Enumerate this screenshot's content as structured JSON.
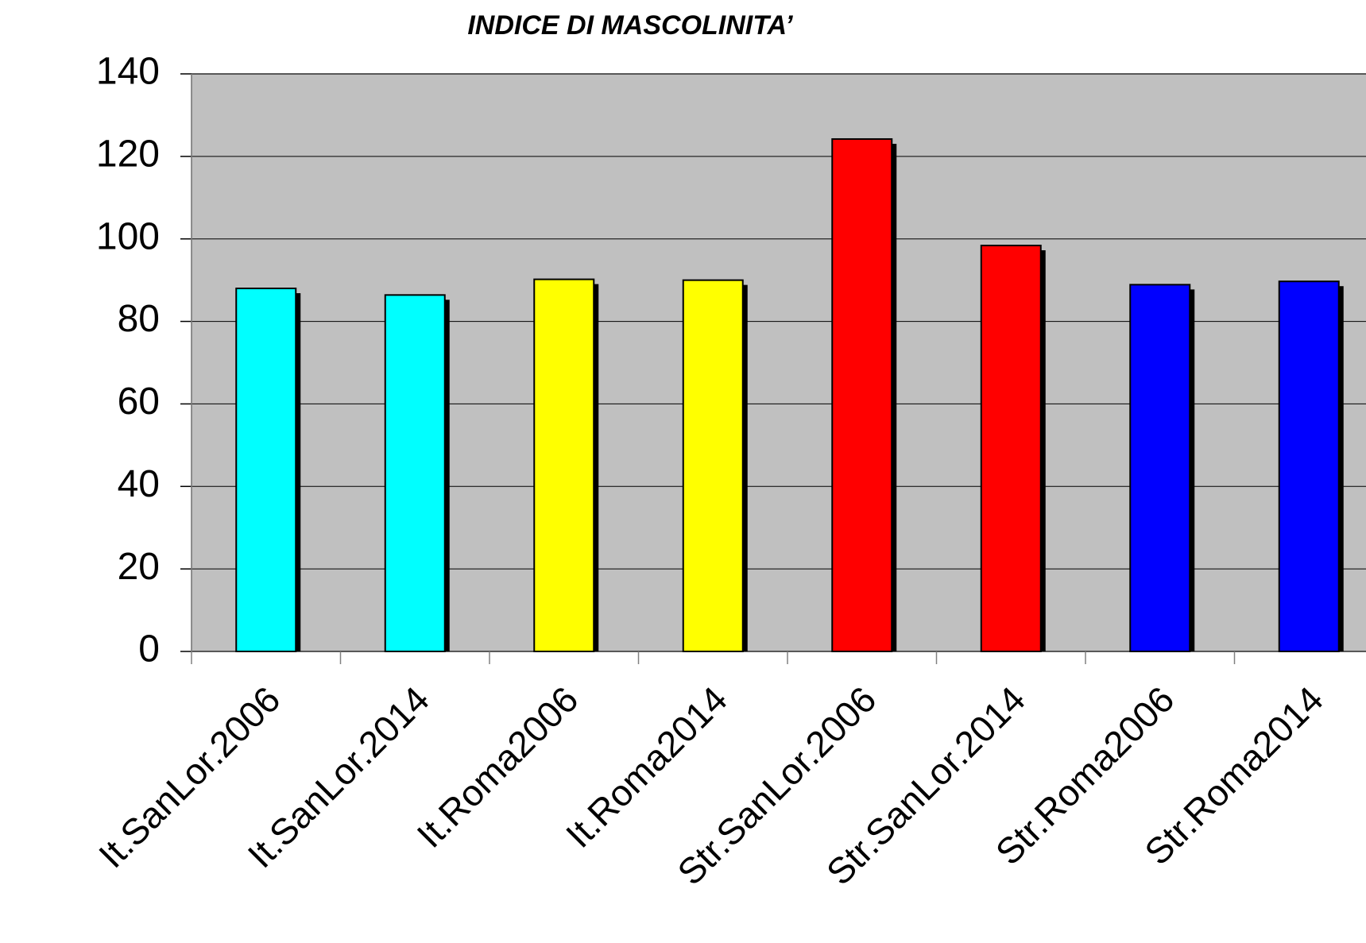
{
  "chart_data": {
    "type": "bar",
    "title": "INDICE  DI  MASCOLINITA’",
    "categories": [
      "It.SanLor.2006",
      "It.SanLor.2014",
      "It.Roma2006",
      "It.Roma2014",
      "Str.SanLor.2006",
      "Str.SanLor.2014",
      "Str.Roma2006",
      "Str.Roma2014"
    ],
    "values": [
      88.0,
      86.4,
      90.2,
      90.0,
      124.2,
      98.4,
      88.9,
      89.7
    ],
    "colors": [
      "#00ffff",
      "#00ffff",
      "#ffff00",
      "#ffff00",
      "#ff0000",
      "#ff0000",
      "#0000ff",
      "#0000ff"
    ],
    "ylim": [
      0,
      140
    ],
    "yticks": [
      0,
      20,
      40,
      60,
      80,
      100,
      120,
      140
    ],
    "grid": true
  }
}
